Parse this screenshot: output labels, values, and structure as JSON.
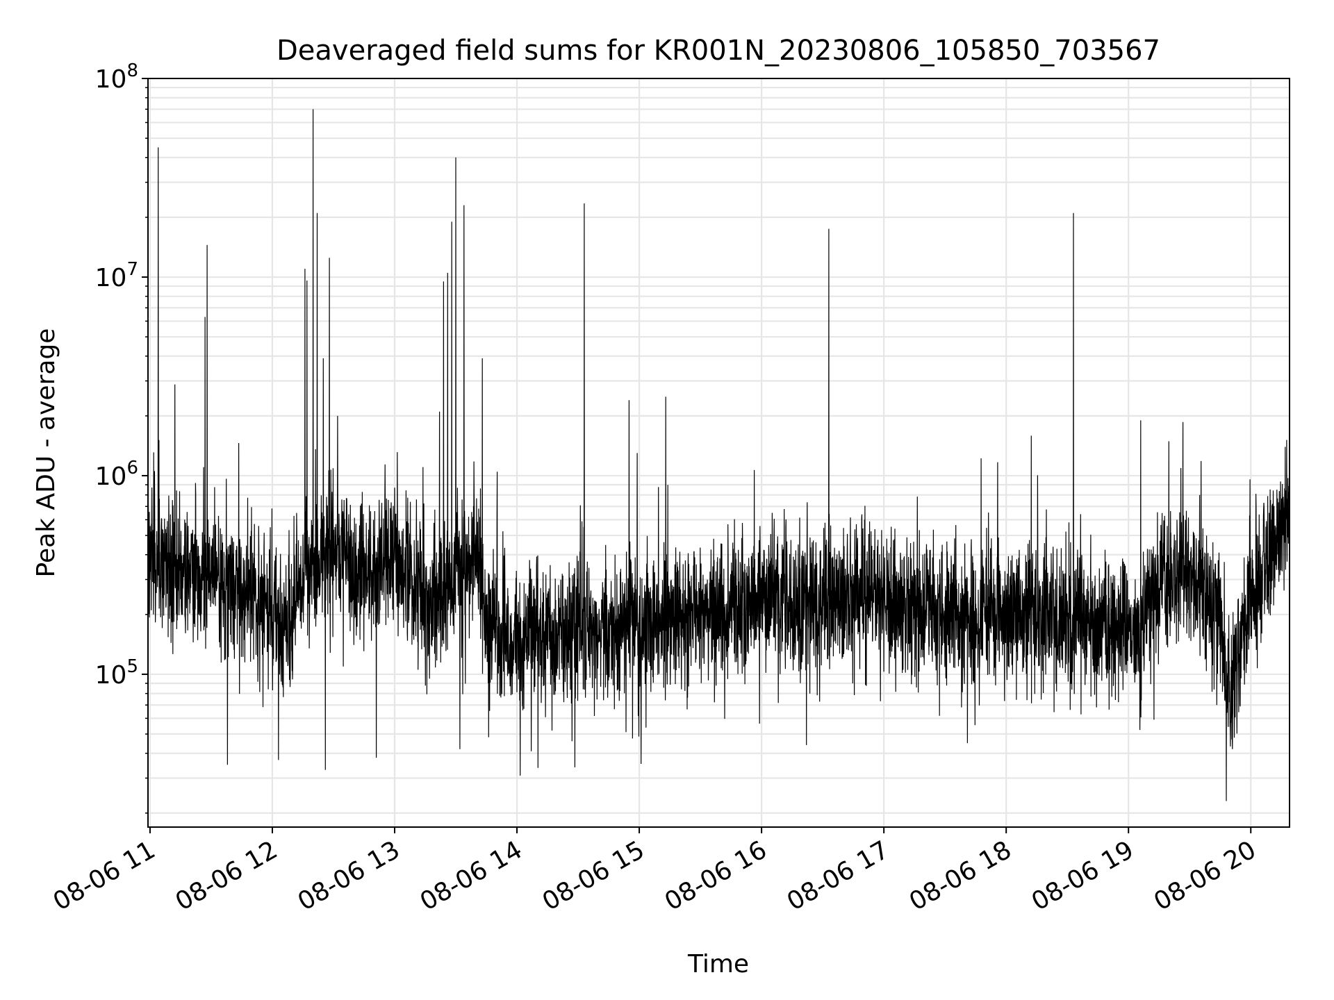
{
  "chart_data": {
    "type": "line",
    "title": "Deaveraged field sums for KR001N_20230806_105850_703567",
    "xlabel": "Time",
    "ylabel": "Peak ADU - average",
    "x_scale": "time",
    "y_scale": "log",
    "xlim": [
      "2023-08-06 10:59",
      "2023-08-06 20:19"
    ],
    "ylim": [
      17000,
      100000000
    ],
    "grid": true,
    "line_color": "#000000",
    "grid_color": "#e6e6e6",
    "x_ticks": [
      {
        "t": "2023-08-06 11:00",
        "label": "08-06 11"
      },
      {
        "t": "2023-08-06 12:00",
        "label": "08-06 12"
      },
      {
        "t": "2023-08-06 13:00",
        "label": "08-06 13"
      },
      {
        "t": "2023-08-06 14:00",
        "label": "08-06 14"
      },
      {
        "t": "2023-08-06 15:00",
        "label": "08-06 15"
      },
      {
        "t": "2023-08-06 16:00",
        "label": "08-06 16"
      },
      {
        "t": "2023-08-06 17:00",
        "label": "08-06 17"
      },
      {
        "t": "2023-08-06 18:00",
        "label": "08-06 18"
      },
      {
        "t": "2023-08-06 19:00",
        "label": "08-06 19"
      },
      {
        "t": "2023-08-06 20:00",
        "label": "08-06 20"
      }
    ],
    "y_ticks": [
      {
        "value": 100000,
        "base": "10",
        "exp": "5"
      },
      {
        "value": 1000000,
        "base": "10",
        "exp": "6"
      },
      {
        "value": 10000000,
        "base": "10",
        "exp": "7"
      },
      {
        "value": 100000000,
        "base": "10",
        "exp": "8"
      }
    ],
    "baseline": [
      [
        "2023-08-06 10:59",
        400000
      ],
      [
        "2023-08-06 11:10",
        350000
      ],
      [
        "2023-08-06 11:30",
        280000
      ],
      [
        "2023-08-06 11:50",
        260000
      ],
      [
        "2023-08-06 12:00",
        200000
      ],
      [
        "2023-08-06 12:05",
        150000
      ],
      [
        "2023-08-06 12:15",
        300000
      ],
      [
        "2023-08-06 12:30",
        450000
      ],
      [
        "2023-08-06 12:45",
        300000
      ],
      [
        "2023-08-06 13:00",
        400000
      ],
      [
        "2023-08-06 13:15",
        220000
      ],
      [
        "2023-08-06 13:30",
        300000
      ],
      [
        "2023-08-06 13:40",
        400000
      ],
      [
        "2023-08-06 13:45",
        170000
      ],
      [
        "2023-08-06 14:00",
        150000
      ],
      [
        "2023-08-06 14:30",
        160000
      ],
      [
        "2023-08-06 15:00",
        180000
      ],
      [
        "2023-08-06 15:30",
        200000
      ],
      [
        "2023-08-06 16:00",
        240000
      ],
      [
        "2023-08-06 16:30",
        240000
      ],
      [
        "2023-08-06 17:00",
        230000
      ],
      [
        "2023-08-06 17:30",
        200000
      ],
      [
        "2023-08-06 18:00",
        210000
      ],
      [
        "2023-08-06 18:30",
        190000
      ],
      [
        "2023-08-06 19:00",
        180000
      ],
      [
        "2023-08-06 19:05",
        150000
      ],
      [
        "2023-08-06 19:15",
        300000
      ],
      [
        "2023-08-06 19:30",
        350000
      ],
      [
        "2023-08-06 19:45",
        200000
      ],
      [
        "2023-08-06 19:50",
        80000
      ],
      [
        "2023-08-06 20:00",
        250000
      ],
      [
        "2023-08-06 20:10",
        400000
      ],
      [
        "2023-08-06 20:19",
        600000
      ]
    ],
    "spikes": [
      [
        "2023-08-06 11:04",
        45000000
      ],
      [
        "2023-08-06 11:27",
        6300000
      ],
      [
        "2023-08-06 11:28",
        14500000
      ],
      [
        "2023-08-06 12:16",
        11000000
      ],
      [
        "2023-08-06 12:17",
        9600000
      ],
      [
        "2023-08-06 12:20",
        70000000
      ],
      [
        "2023-08-06 12:22",
        21000000
      ],
      [
        "2023-08-06 12:25",
        3900000
      ],
      [
        "2023-08-06 12:28",
        12500000
      ],
      [
        "2023-08-06 12:32",
        2000000
      ],
      [
        "2023-08-06 13:22",
        2100000
      ],
      [
        "2023-08-06 13:24",
        9500000
      ],
      [
        "2023-08-06 13:26",
        10500000
      ],
      [
        "2023-08-06 13:28",
        19000000
      ],
      [
        "2023-08-06 13:30",
        40000000
      ],
      [
        "2023-08-06 13:34",
        23000000
      ],
      [
        "2023-08-06 13:43",
        3900000
      ],
      [
        "2023-08-06 14:33",
        23500000
      ],
      [
        "2023-08-06 14:55",
        2400000
      ],
      [
        "2023-08-06 14:59",
        1300000
      ],
      [
        "2023-08-06 15:13",
        2500000
      ],
      [
        "2023-08-06 16:33",
        17500000
      ],
      [
        "2023-08-06 18:33",
        21000000
      ],
      [
        "2023-08-06 19:06",
        1900000
      ]
    ],
    "dips": [
      [
        "2023-08-06 11:38",
        35000
      ],
      [
        "2023-08-06 12:03",
        37000
      ],
      [
        "2023-08-06 12:26",
        33000
      ],
      [
        "2023-08-06 12:51",
        38000
      ],
      [
        "2023-08-06 13:32",
        42000
      ],
      [
        "2023-08-06 14:07",
        41000
      ],
      [
        "2023-08-06 14:27",
        46000
      ],
      [
        "2023-08-06 16:22",
        44000
      ],
      [
        "2023-08-06 17:41",
        45000
      ],
      [
        "2023-08-06 19:48",
        23000
      ],
      [
        "2023-08-06 19:51",
        42000
      ]
    ]
  }
}
